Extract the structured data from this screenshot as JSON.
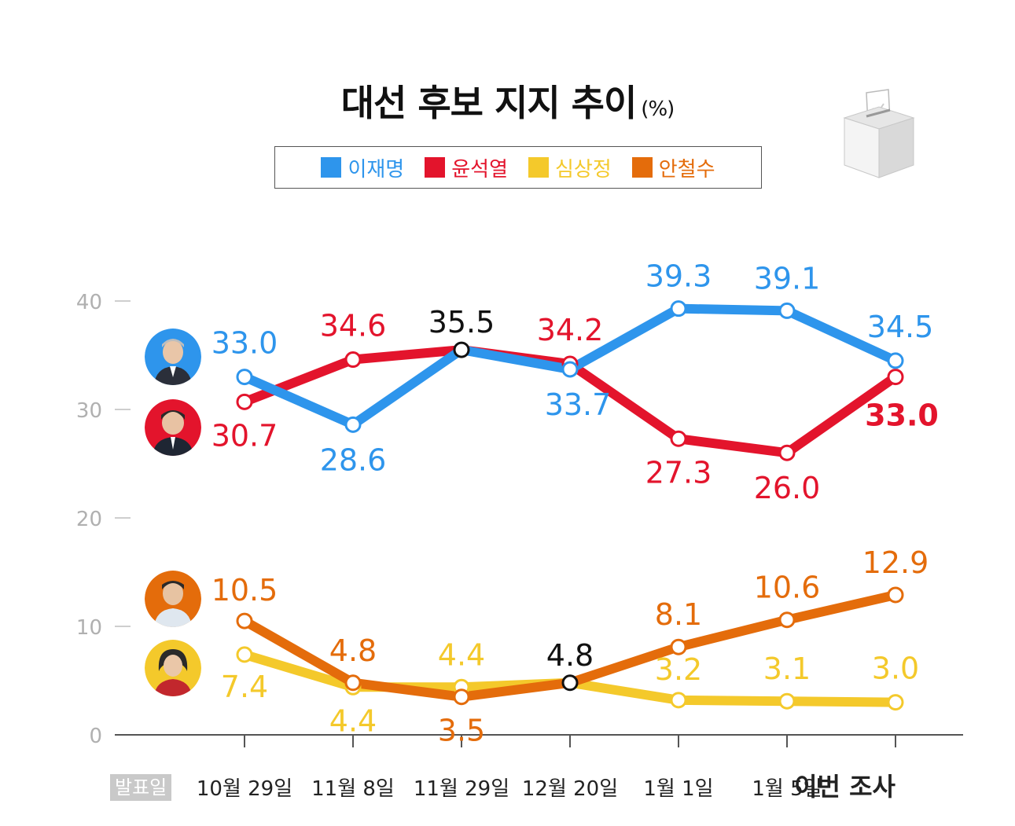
{
  "title": "대선 후보 지지 추이",
  "title_unit": "(%)",
  "legend": [
    {
      "label": "이재명",
      "color": "#2e95ec"
    },
    {
      "label": "윤석열",
      "color": "#e3142c"
    },
    {
      "label": "심상정",
      "color": "#f4c92b"
    },
    {
      "label": "안철수",
      "color": "#e46c0b"
    }
  ],
  "footer_label": "발표일",
  "chart_data": {
    "type": "line",
    "categories": [
      "10월 29일",
      "11월 8일",
      "11월 29일",
      "12월 20일",
      "1월 1일",
      "1월 5일",
      "이번 조사"
    ],
    "yticks": [
      0,
      10,
      20,
      30,
      40
    ],
    "ylim": [
      0,
      40
    ],
    "series": [
      {
        "name": "이재명",
        "color": "#2e95ec",
        "values": [
          33.0,
          28.6,
          35.5,
          33.7,
          39.3,
          39.1,
          34.5
        ],
        "labels": [
          "33.0",
          "28.6",
          "",
          "33.7",
          "39.3",
          "39.1",
          "34.5"
        ]
      },
      {
        "name": "윤석열",
        "color": "#e3142c",
        "values": [
          30.7,
          34.6,
          35.5,
          34.2,
          27.3,
          26.0,
          33.0
        ],
        "labels": [
          "30.7",
          "34.6",
          "",
          "34.2",
          "27.3",
          "26.0",
          "33.0"
        ]
      },
      {
        "name": "안철수",
        "color": "#e46c0b",
        "values": [
          10.5,
          4.8,
          3.5,
          4.8,
          8.1,
          10.6,
          12.9
        ],
        "labels": [
          "10.5",
          "4.8",
          "3.5",
          "",
          "8.1",
          "10.6",
          "12.9"
        ]
      },
      {
        "name": "심상정",
        "color": "#f4c92b",
        "values": [
          7.4,
          4.4,
          4.4,
          4.8,
          3.2,
          3.1,
          3.0
        ],
        "labels": [
          "7.4",
          "4.4",
          "4.4",
          "",
          "3.2",
          "3.1",
          "3.0"
        ]
      }
    ],
    "shared_points": [
      {
        "label": "35.5",
        "value": 35.5,
        "index": 2
      },
      {
        "label": "4.8",
        "value": 4.8,
        "index": 3
      }
    ]
  }
}
